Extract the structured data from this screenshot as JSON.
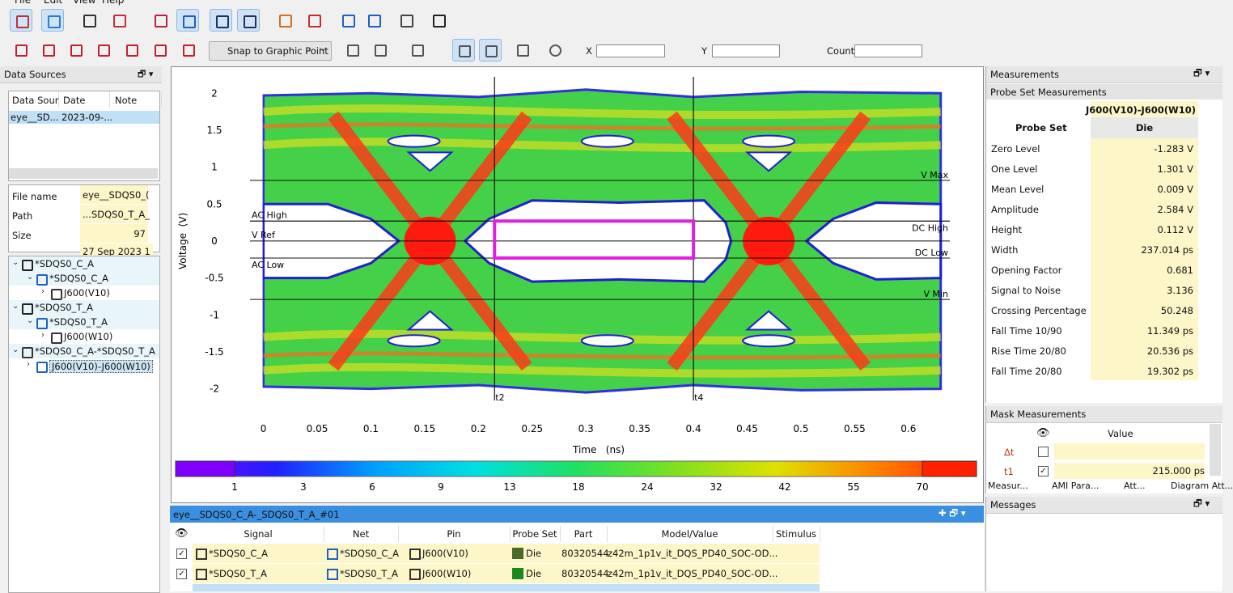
{
  "menu": [
    "File",
    "Edit",
    "View",
    "Help"
  ],
  "toolbar": {
    "snap": "Snap to Graphic Point",
    "x_label": "X",
    "y_label": "Y",
    "count_label": "Count"
  },
  "data_sources": {
    "title": "Data Sources",
    "columns": [
      "Data Sour",
      "Date",
      "Note"
    ],
    "rows": [
      [
        "eye__SD...",
        "2023-09-..."
      ]
    ],
    "properties": [
      [
        "File name",
        "eye__SDQS0_("
      ],
      [
        "Path",
        "...SDQS0_T_A_"
      ],
      [
        "Size",
        "97"
      ]
    ],
    "cut_value": "27 Sep 2023 1"
  },
  "tree": [
    {
      "label": "*SDQS0_C_A",
      "icon": "E",
      "children": [
        {
          "label": "*SDQS0_C_A",
          "icon": "net",
          "children": [
            {
              "label": "J600(V10)",
              "icon": "pin"
            }
          ]
        }
      ]
    },
    {
      "label": "*SDQS0_T_A",
      "icon": "E",
      "children": [
        {
          "label": "*SDQS0_T_A",
          "icon": "net",
          "children": [
            {
              "label": "J600(W10)",
              "icon": "pin"
            }
          ]
        }
      ]
    },
    {
      "label": "*SDQS0_C_A-*SDQS0_T_A",
      "icon": "diff",
      "children": [
        {
          "label": "J600(V10)-J600(W10)",
          "icon": "probe",
          "selected": true
        }
      ]
    }
  ],
  "chart_data": {
    "type": "eye",
    "x_label": "Time   (ns)",
    "y_label": "Voltage  (V)",
    "xlim": [
      -0.02,
      0.64
    ],
    "ylim": [
      -2.3,
      2.2
    ],
    "xticks": [
      0,
      0.05,
      0.1,
      0.15,
      0.2,
      0.25,
      0.3,
      0.35,
      0.4,
      0.45,
      0.5,
      0.55,
      0.6
    ],
    "yticks": [
      2,
      1.5,
      1,
      0.5,
      0,
      -0.5,
      -1,
      -1.5,
      -2
    ],
    "levels": [
      {
        "name": "V Max",
        "value": 0.82,
        "side": "right"
      },
      {
        "name": "V Min",
        "value": -0.79,
        "side": "right"
      },
      {
        "name": "AC High",
        "value": 0.27,
        "side": "left"
      },
      {
        "name": "V Ref",
        "value": 0,
        "side": "left"
      },
      {
        "name": "AC Low",
        "value": -0.23,
        "side": "left"
      },
      {
        "name": "DC High",
        "value": 0.27,
        "side": "right"
      },
      {
        "name": "DC Low",
        "value": -0.23,
        "side": "right"
      }
    ],
    "cursors": [
      {
        "name": "t2",
        "value": 0.215
      },
      {
        "name": "t4",
        "value": 0.4
      }
    ],
    "mask": {
      "x": [
        0.215,
        0.4
      ],
      "y": [
        -0.23,
        0.27
      ],
      "color": "#e020e0"
    },
    "colorbar": {
      "ticks": [
        1,
        3,
        6,
        9,
        13,
        18,
        24,
        32,
        42,
        55,
        70
      ],
      "colors": [
        "#7f00ff",
        "#2020ff",
        "#00a0ff",
        "#00e0e0",
        "#20e060",
        "#80e020",
        "#e0e000",
        "#ff8000",
        "#ff2000"
      ]
    }
  },
  "measurements": {
    "title": "Measurements",
    "subtitle": "Probe Set Measurements",
    "probe_set": "J600(V10)-J600(W10)",
    "col_label": "Probe Set",
    "col_value": "Die",
    "rows": [
      [
        "Zero Level",
        "-1.283 V"
      ],
      [
        "One Level",
        "1.301 V"
      ],
      [
        "Mean Level",
        "0.009 V"
      ],
      [
        "Amplitude",
        "2.584 V"
      ],
      [
        "Height",
        "0.112 V"
      ],
      [
        "Width",
        "237.014 ps"
      ],
      [
        "Opening Factor",
        "0.681"
      ],
      [
        "Signal to Noise",
        "3.136"
      ],
      [
        "Crossing Percentage",
        "50.248"
      ],
      [
        "Fall Time 10/90",
        "11.349 ps"
      ],
      [
        "Rise Time 20/80",
        "20.536 ps"
      ],
      [
        "Fall Time 20/80",
        "19.302 ps"
      ]
    ]
  },
  "mask_measurements": {
    "title": "Mask Measurements",
    "value_header": "Value",
    "rows": [
      {
        "name": "Δt",
        "checked": false
      },
      {
        "name": "t1",
        "value": "215.000 ps",
        "checked": true
      }
    ]
  },
  "tabs": [
    "Measur...",
    "AMI Para...",
    "Att...",
    "Diagram Att..."
  ],
  "messages": {
    "title": "Messages"
  },
  "signals": {
    "title": "eye__SDQS0_C_A-_SDQS0_T_A_#01",
    "columns": [
      "Signal",
      "Net",
      "Pin",
      "Probe Set",
      "Part",
      "Model/Value",
      "Stimulus"
    ],
    "rows": [
      {
        "cells": [
          "*SDQS0_C_A",
          "*SDQS0_C_A",
          "J600(V10)",
          "Die",
          "80320544",
          "z42m_1p1v_it_DQS_PD40_SOC-OD..."
        ],
        "color": "#4a6a2a"
      },
      {
        "cells": [
          "*SDQS0_T_A",
          "*SDQS0_T_A",
          "J600(W10)",
          "Die",
          "80320544",
          "z42m_1p1v_it_DQS_PD40_SOC-OD..."
        ],
        "color": "#1a8a1a"
      }
    ]
  }
}
